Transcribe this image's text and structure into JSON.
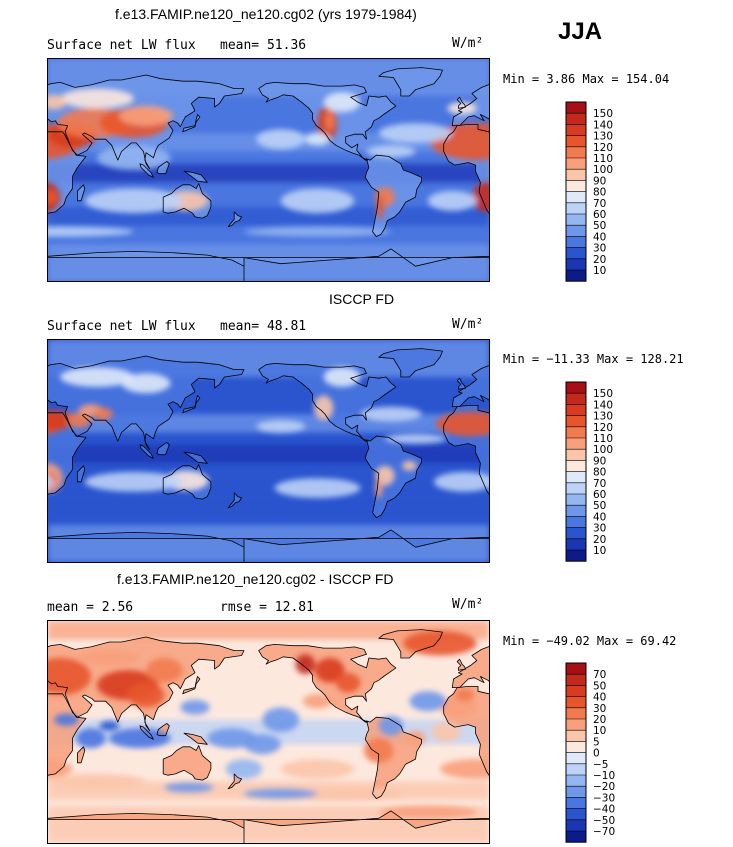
{
  "season": "JJA",
  "panels": [
    {
      "title": "f.e13.FAMIP.ne120_ne120.cg02 (yrs 1979-1984)",
      "left_label": "Surface net LW flux",
      "right_label": "mean=  51.36",
      "units": "W/m²",
      "minmax": "Min =   3.86 Max = 154.04"
    },
    {
      "title": "ISCCP FD",
      "left_label": "Surface net LW flux",
      "right_label": "mean=  48.81",
      "units": "W/m²",
      "minmax": "Min = −11.33 Max = 128.21"
    },
    {
      "title": "f.e13.FAMIP.ne120_ne120.cg02 - ISCCP FD",
      "left_label": "mean =   2.56",
      "right_label": "rmse =  12.81",
      "units": "W/m²",
      "minmax": "Min = −49.02 Max =  69.42"
    }
  ],
  "chart_data": [
    {
      "type": "heatmap",
      "title": "f.e13.FAMIP.ne120_ne120.cg02 (yrs 1979-1984)",
      "variable": "Surface net LW flux",
      "mean": 51.36,
      "min": 3.86,
      "max": 154.04,
      "units": "W/m²",
      "colorbar_levels": [
        "150",
        "140",
        "130",
        "120",
        "110",
        "100",
        "90",
        "80",
        "70",
        "60",
        "50",
        "40",
        "30",
        "20",
        "10"
      ],
      "colorbar_colors": [
        "#a50f15",
        "#c42a1c",
        "#d83b1e",
        "#e8552b",
        "#f27a4f",
        "#f8a07c",
        "#fbc5aa",
        "#fde8de",
        "#dfe9f9",
        "#bcd2f7",
        "#94b6f1",
        "#6f97ea",
        "#4a76e0",
        "#2a55cf",
        "#1b35b3",
        "#0c1a8a"
      ]
    },
    {
      "type": "heatmap",
      "title": "ISCCP FD",
      "variable": "Surface net LW flux",
      "mean": 48.81,
      "min": -11.33,
      "max": 128.21,
      "units": "W/m²",
      "colorbar_levels": [
        "150",
        "140",
        "130",
        "120",
        "110",
        "100",
        "90",
        "80",
        "70",
        "60",
        "50",
        "40",
        "30",
        "20",
        "10"
      ],
      "colorbar_colors": [
        "#a50f15",
        "#c42a1c",
        "#d83b1e",
        "#e8552b",
        "#f27a4f",
        "#f8a07c",
        "#fbc5aa",
        "#fde8de",
        "#dfe9f9",
        "#bcd2f7",
        "#94b6f1",
        "#6f97ea",
        "#4a76e0",
        "#2a55cf",
        "#1b35b3",
        "#0c1a8a"
      ]
    },
    {
      "type": "heatmap",
      "title": "f.e13.FAMIP.ne120_ne120.cg02 - ISCCP FD",
      "mean": 2.56,
      "rmse": 12.81,
      "min": -49.02,
      "max": 69.42,
      "units": "W/m²",
      "colorbar_levels": [
        "70",
        "50",
        "40",
        "30",
        "20",
        "10",
        "5",
        "0",
        "−5",
        "−10",
        "−20",
        "−30",
        "−40",
        "−50",
        "−70"
      ],
      "colorbar_colors": [
        "#a50f15",
        "#c42a1c",
        "#d83b1e",
        "#e8552b",
        "#f27a4f",
        "#f8a07c",
        "#fbc5aa",
        "#fde8de",
        "#dfe9f9",
        "#bcd2f7",
        "#94b6f1",
        "#6f97ea",
        "#4a76e0",
        "#2a55cf",
        "#1b35b3",
        "#0c1a8a"
      ]
    }
  ]
}
